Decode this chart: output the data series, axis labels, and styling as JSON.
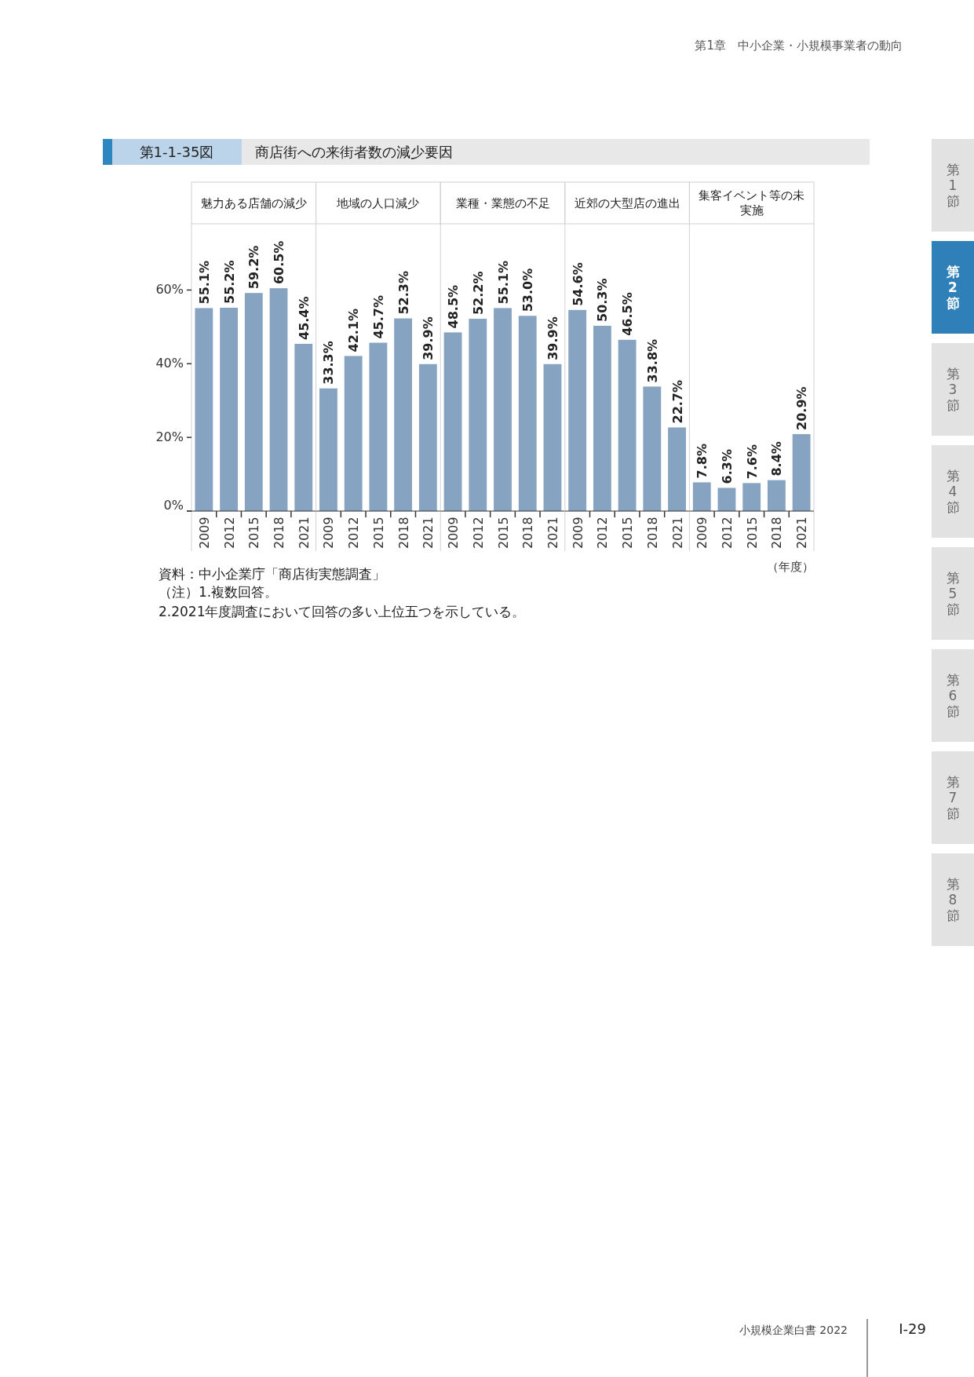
{
  "chart_data": [
    {
      "type": "bar",
      "title": "魅力ある店舗の減少",
      "categories": [
        "2009",
        "2012",
        "2015",
        "2018",
        "2021"
      ],
      "values": [
        55.1,
        55.2,
        59.2,
        60.5,
        45.4
      ],
      "value_labels": [
        "55.1%",
        "55.2%",
        "59.2%",
        "60.5%",
        "45.4%"
      ],
      "color": "#87a3c2",
      "ylim": [
        0,
        78
      ],
      "yticks": [
        {
          "value": 0,
          "label": "0%"
        },
        {
          "value": 20,
          "label": "20%"
        },
        {
          "value": 40,
          "label": "40%"
        },
        {
          "value": 60,
          "label": "60%"
        }
      ],
      "annotations": [
        "第1章　中小企業・小規模事業者の動向",
        "第1-1-35図",
        "商店街への来街者数の減少要因",
        "資料：中小企業庁「商店街実態調査」",
        "（注）1.複数回答。",
        "2.2021年度調査において回答の多い上位五つを示している。",
        "小規模企業白書  2022",
        "Ⅰ-29",
        "第1節",
        "第2節",
        "第3節",
        "第4節",
        "第5節",
        "第6節",
        "第7節",
        "第8節"
      ]
    },
    {
      "type": "bar",
      "title": "地域の人口減少",
      "categories": [
        "2009",
        "2012",
        "2015",
        "2018",
        "2021"
      ],
      "values": [
        33.3,
        42.1,
        45.7,
        52.3,
        39.9
      ],
      "value_labels": [
        "33.3%",
        "42.1%",
        "45.7%",
        "52.3%",
        "39.9%"
      ],
      "color": "#87a3c2",
      "ylim": [
        0,
        78
      ],
      "tick_labels": "x"
    },
    {
      "type": "bar",
      "title": "業種・業態の不足",
      "categories": [
        "2009",
        "2012",
        "2015",
        "2018",
        "2021"
      ],
      "values": [
        48.5,
        52.2,
        55.1,
        53.0,
        39.9
      ],
      "value_labels": [
        "48.5%",
        "52.2%",
        "55.1%",
        "53.0%",
        "39.9%"
      ],
      "color": "#87a3c2",
      "ylim": [
        0,
        78
      ],
      "tick_labels": "x"
    },
    {
      "type": "bar",
      "title": "近郊の大型店の進出",
      "categories": [
        "2009",
        "2012",
        "2015",
        "2018",
        "2021"
      ],
      "values": [
        54.6,
        50.3,
        46.5,
        33.8,
        22.7
      ],
      "value_labels": [
        "54.6%",
        "50.3%",
        "46.5%",
        "33.8%",
        "22.7%"
      ],
      "color": "#87a3c2",
      "ylim": [
        0,
        78
      ],
      "tick_labels": "x"
    },
    {
      "type": "bar",
      "title": "集客イベント等の未実施",
      "categories": [
        "2009",
        "2012",
        "2015",
        "2018",
        "2021"
      ],
      "values": [
        7.8,
        6.3,
        7.6,
        8.4,
        20.9
      ],
      "value_labels": [
        "7.8%",
        "6.3%",
        "7.6%",
        "8.4%",
        "20.9%"
      ],
      "color": "#87a3c2",
      "ylim": [
        0,
        78
      ],
      "tick_labels": "x",
      "xlabel": "（年度）"
    }
  ]
}
